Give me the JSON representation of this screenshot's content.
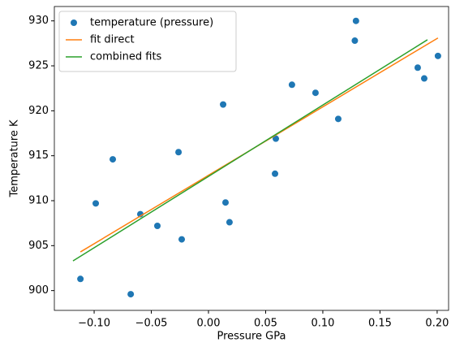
{
  "chart_data": {
    "type": "scatter",
    "xlabel": "Pressure GPa",
    "ylabel": "Temperature K",
    "xlim": [
      -0.1348,
      0.21
    ],
    "ylim": [
      897.8,
      931.6
    ],
    "xticks": [
      {
        "value": -0.1,
        "label": "−0.10"
      },
      0.05,
      {
        "value": 0,
        "label": "0.00"
      },
      {
        "value": -0.05,
        "label": "−0.05"
      },
      {
        "value": 0.1,
        "label": "0.10"
      },
      0.15,
      {
        "value": 0.2,
        "label": "0.20"
      }
    ],
    "yticks": [
      900,
      905,
      910,
      915,
      920,
      925,
      930
    ],
    "legend": "upper left",
    "series": [
      {
        "name": "temperature (pressure)",
        "type": "scatter",
        "color": "#1f77b4",
        "x": [
          -0.112,
          -0.0986,
          -0.0837,
          -0.068,
          -0.0596,
          -0.0447,
          -0.0262,
          -0.0234,
          0.0128,
          0.0149,
          0.0184,
          0.0582,
          0.0589,
          0.073,
          0.0936,
          0.1135,
          0.128,
          0.129,
          0.183,
          0.1887,
          0.2007
        ],
        "values": [
          901.3,
          909.7,
          914.6,
          899.6,
          908.5,
          907.2,
          915.4,
          905.7,
          920.7,
          909.8,
          907.6,
          913.0,
          916.9,
          922.9,
          922.0,
          919.1,
          927.8,
          930.0,
          924.8,
          923.6,
          926.1
        ]
      },
      {
        "name": "fit direct",
        "type": "line",
        "color": "#ff7f0e",
        "x": [
          -0.112,
          0.2007
        ],
        "values": [
          904.3,
          928.1
        ]
      },
      {
        "name": "combined fits",
        "type": "line",
        "color": "#2ca02c",
        "x": [
          -0.1185,
          0.1915
        ],
        "values": [
          903.3,
          927.9
        ]
      }
    ]
  }
}
